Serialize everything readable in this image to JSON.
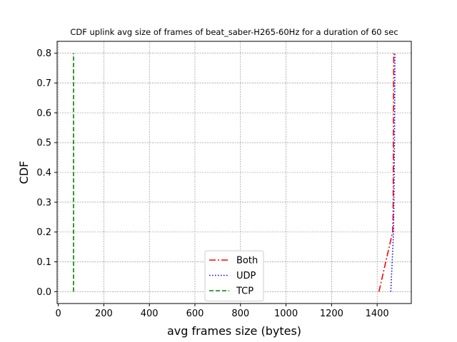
{
  "chart_data": {
    "type": "line",
    "title": "CDF uplink avg size of frames of beat_saber-H265-60Hz for a duration of 60 sec",
    "xlabel": "avg frames size (bytes)",
    "ylabel": "CDF",
    "xlim": [
      -5,
      1550
    ],
    "ylim": [
      -0.04,
      0.84
    ],
    "xticks": [
      0,
      200,
      400,
      600,
      800,
      1000,
      1200,
      1400
    ],
    "yticks": [
      0.0,
      0.1,
      0.2,
      0.3,
      0.4,
      0.5,
      0.6,
      0.7,
      0.8
    ],
    "grid": true,
    "legend_position": "lower center",
    "series": [
      {
        "name": "Both",
        "color": "#ff0000",
        "linestyle": "dashdot",
        "points": [
          [
            1408,
            0.0
          ],
          [
            1468,
            0.2
          ],
          [
            1470,
            0.25
          ],
          [
            1471,
            0.4
          ],
          [
            1472,
            0.6
          ],
          [
            1473,
            0.8
          ]
        ]
      },
      {
        "name": "UDP",
        "color": "#0000ff",
        "linestyle": "dotted",
        "points": [
          [
            1460,
            0.0
          ],
          [
            1472,
            0.2
          ],
          [
            1475,
            0.4
          ],
          [
            1477,
            0.6
          ],
          [
            1478,
            0.8
          ]
        ]
      },
      {
        "name": "TCP",
        "color": "#008000",
        "linestyle": "dashed",
        "points": [
          [
            67,
            0.0
          ],
          [
            67,
            0.8
          ]
        ]
      }
    ]
  }
}
